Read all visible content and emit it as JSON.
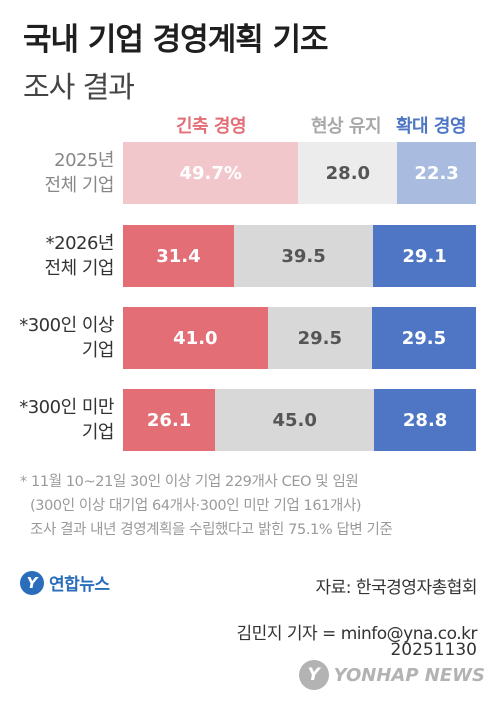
{
  "title": "국내 기업 경영계획 기조",
  "subtitle": "조사 결과",
  "chart_data": {
    "type": "bar",
    "orientation": "horizontal-stacked-100",
    "title": "국내 기업 경영계획 기조",
    "subtitle": "조사 결과",
    "legend_placement": "top",
    "series": [
      {
        "name": "긴축 경영",
        "color": "#e36e76",
        "color_faded": "#f1c7cc",
        "text_color": "#ffffff"
      },
      {
        "name": "현상 유지",
        "color": "#d8d8d8",
        "color_faded": "#ececec",
        "text_color": "#555555"
      },
      {
        "name": "확대 경영",
        "color": "#4f76c4",
        "color_faded": "#a9bce0",
        "text_color": "#ffffff"
      }
    ],
    "categories": [
      {
        "lines": [
          "2025년",
          "전체 기업"
        ],
        "values": [
          49.7,
          28.0,
          22.3
        ],
        "labels": [
          "49.7%",
          "28.0",
          "22.3"
        ],
        "faded": true
      },
      {
        "lines": [
          "*2026년",
          "전체 기업"
        ],
        "values": [
          31.4,
          39.5,
          29.1
        ],
        "labels": [
          "31.4",
          "39.5",
          "29.1"
        ],
        "faded": false
      },
      {
        "lines": [
          "*300인 이상",
          "기업"
        ],
        "values": [
          41.0,
          29.5,
          29.5
        ],
        "labels": [
          "41.0",
          "29.5",
          "29.5"
        ],
        "faded": false
      },
      {
        "lines": [
          "*300인 미만",
          "기업"
        ],
        "values": [
          26.1,
          45.0,
          28.8
        ],
        "labels": [
          "26.1",
          "45.0",
          "28.8"
        ],
        "faded": false
      }
    ]
  },
  "footnote": [
    "* 11월 10~21일 30인 이상 기업 229개사 CEO 및 임원",
    "(300인 이상 대기업 64개사·300인 미만 기업 161개사)",
    "조사 결과 내년 경영계획을 수립했다고 밝힌 75.1% 답변 기준"
  ],
  "logo": {
    "mark": "Y",
    "text": "연합뉴스"
  },
  "source": "자료: 한국경영자총협회",
  "reporter": "김민지 기자 = minfo@yna.co.kr",
  "date": "20251130",
  "watermark": {
    "mark": "Y",
    "text": "YONHAP NEWS"
  }
}
